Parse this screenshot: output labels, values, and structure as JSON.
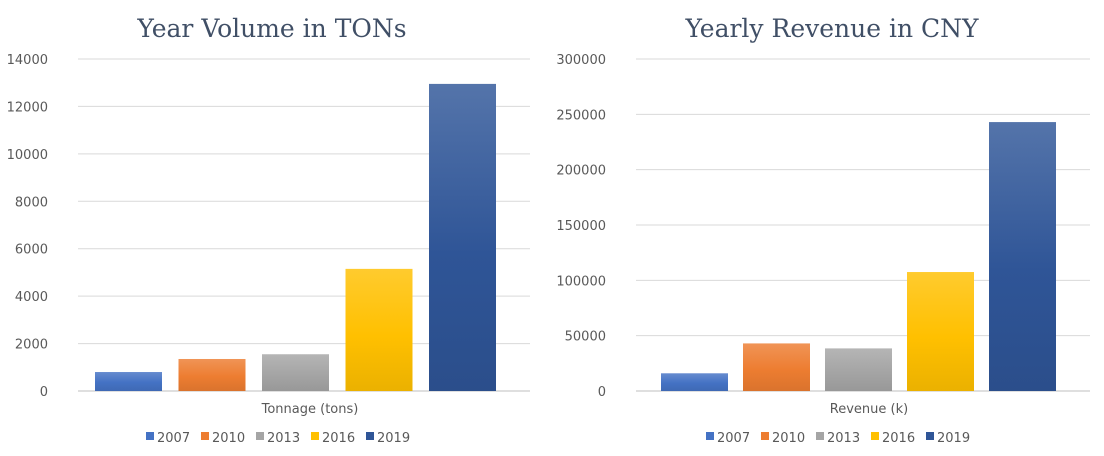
{
  "colors": {
    "2007": "#4472c4",
    "2010": "#ed7d31",
    "2013": "#a5a5a5",
    "2016": "#ffc000",
    "2019": "#2f5597"
  },
  "chart_data": [
    {
      "type": "bar",
      "title": "Year Volume in TONs",
      "xlabel": "Tonnage (tons)",
      "ylabel": "",
      "ylim": [
        0,
        14000
      ],
      "yticks": [
        0,
        2000,
        4000,
        6000,
        8000,
        10000,
        12000,
        14000
      ],
      "grid": true,
      "legend": "bottom",
      "series": [
        {
          "name": "2007",
          "values": [
            800
          ]
        },
        {
          "name": "2010",
          "values": [
            1350
          ]
        },
        {
          "name": "2013",
          "values": [
            1550
          ]
        },
        {
          "name": "2016",
          "values": [
            5150
          ]
        },
        {
          "name": "2019",
          "values": [
            12950
          ]
        }
      ]
    },
    {
      "type": "bar",
      "title": "Yearly Revenue in CNY",
      "xlabel": "Revenue (k)",
      "ylabel": "",
      "ylim": [
        0,
        300000
      ],
      "yticks": [
        0,
        50000,
        100000,
        150000,
        200000,
        250000,
        300000
      ],
      "grid": true,
      "legend": "bottom",
      "series": [
        {
          "name": "2007",
          "values": [
            16000
          ]
        },
        {
          "name": "2010",
          "values": [
            43000
          ]
        },
        {
          "name": "2013",
          "values": [
            38500
          ]
        },
        {
          "name": "2016",
          "values": [
            107500
          ]
        },
        {
          "name": "2019",
          "values": [
            243000
          ]
        }
      ]
    }
  ]
}
